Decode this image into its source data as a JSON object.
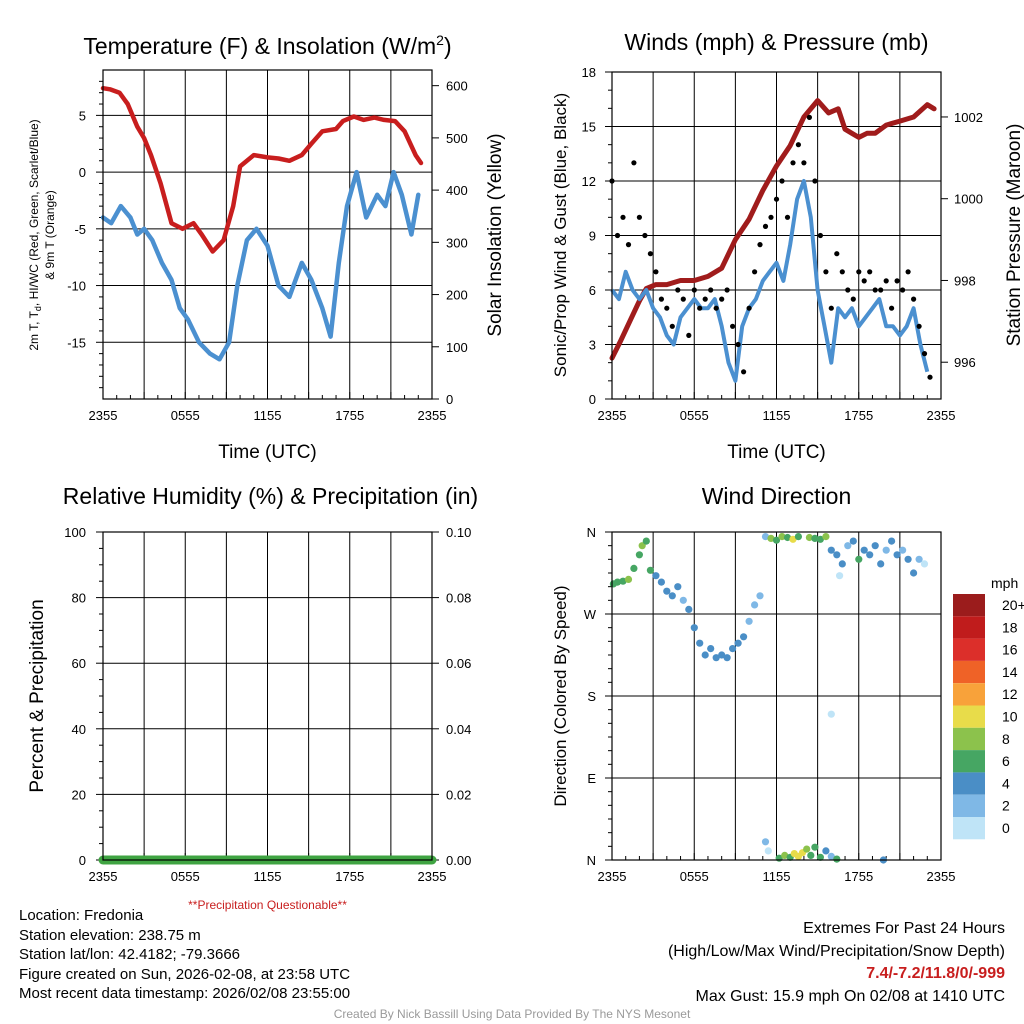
{
  "chart_data": [
    {
      "id": "temperature",
      "type": "line",
      "title": "Temperature (F) & Insolation (W/m",
      "title_superscript": "2",
      "title_suffix": ")",
      "xlabel": "Time (UTC)",
      "ylabel_left_lines": [
        "2m T, T",
        "d",
        ", HI/WC (Red, Green, Scarlet/Blue)",
        "& 9m T (Orange)"
      ],
      "ylabel_right": "Solar Insolation (Yellow)",
      "x_ticks": [
        "2355",
        "0555",
        "1155",
        "1755",
        "2355"
      ],
      "x_range_hours": [
        0,
        24
      ],
      "ylim": [
        -20,
        9
      ],
      "y_ticks": [
        5,
        0,
        -5,
        -10,
        -15
      ],
      "y2lim": [
        0,
        630
      ],
      "y2_ticks": [
        0,
        100,
        200,
        300,
        400,
        500,
        600
      ],
      "series": [
        {
          "name": "2m Temperature",
          "color": "#c81e1e",
          "x": [
            0,
            0.5,
            1.2,
            1.8,
            2.5,
            3,
            3.5,
            4.2,
            5,
            5.8,
            6.6,
            7.2,
            8,
            8.8,
            9.5,
            10,
            11,
            12,
            12.8,
            13.6,
            14.5,
            15.2,
            16,
            17,
            17.5,
            18.3,
            19,
            19.8,
            20.5,
            21.3,
            22,
            22.8,
            23.2
          ],
          "y": [
            7.4,
            7.3,
            7,
            6,
            4,
            3,
            1.5,
            -1,
            -4.5,
            -5,
            -4.5,
            -5.5,
            -7,
            -6,
            -3,
            0.5,
            1.5,
            1.3,
            1.2,
            1,
            1.5,
            2.5,
            3.6,
            3.8,
            4.5,
            4.9,
            4.6,
            4.8,
            4.6,
            4.5,
            3.6,
            1.5,
            0.8
          ]
        },
        {
          "name": "Wind Chill",
          "color": "#4b90d0",
          "x": [
            0,
            0.6,
            1.3,
            2,
            2.5,
            3,
            3.6,
            4.3,
            5,
            5.6,
            6.2,
            7,
            7.8,
            8.5,
            9.2,
            9.8,
            10.5,
            11.2,
            12,
            12.8,
            13.6,
            14.5,
            15.2,
            16,
            16.6,
            17.2,
            17.8,
            18.5,
            19.2,
            20,
            20.6,
            21.2,
            21.8,
            22.5,
            23
          ],
          "y": [
            -4,
            -4.5,
            -3,
            -4,
            -5.5,
            -5,
            -6,
            -8,
            -9.5,
            -12,
            -13,
            -15,
            -16,
            -16.5,
            -15,
            -10,
            -6,
            -5,
            -6.5,
            -10,
            -11,
            -8,
            -9.5,
            -12,
            -14.5,
            -8,
            -3,
            0,
            -4,
            -2,
            -3,
            0,
            -2,
            -5.5,
            -2
          ]
        }
      ]
    },
    {
      "id": "winds",
      "type": "scatter",
      "title": "Winds (mph) & Pressure (mb)",
      "xlabel": "Time (UTC)",
      "ylabel_left": "Sonic/Prop Wind & Gust (Blue, Black)",
      "ylabel_right": "Station Pressure (Maroon)",
      "x_ticks": [
        "2355",
        "0555",
        "1155",
        "1755",
        "2355"
      ],
      "x_range_hours": [
        0,
        24
      ],
      "ylim": [
        0,
        18
      ],
      "y_ticks": [
        0,
        3,
        6,
        9,
        12,
        15,
        18
      ],
      "y2lim": [
        995.1,
        1003.1
      ],
      "y2_ticks": [
        996,
        998,
        1000,
        1002
      ],
      "series": [
        {
          "name": "Station Pressure",
          "color": "#a01c1c",
          "x": [
            0,
            0.6,
            1.3,
            2,
            2.5,
            3.2,
            4,
            5,
            6,
            7,
            8,
            9,
            10,
            11,
            12,
            13,
            14,
            15,
            15.8,
            16.5,
            17,
            17.5,
            18,
            18.6,
            19.2,
            20,
            21,
            22,
            23,
            23.5
          ],
          "y": [
            996.1,
            996.5,
            997,
            997.5,
            997.8,
            997.9,
            997.9,
            998,
            998,
            998.1,
            998.3,
            999,
            999.5,
            1000.2,
            1000.8,
            1001.3,
            1002,
            1002.4,
            1002.1,
            1002.2,
            1001.7,
            1001.6,
            1001.5,
            1001.6,
            1001.6,
            1001.8,
            1001.9,
            1002,
            1002.3,
            1002.2
          ]
        },
        {
          "name": "Sonic Wind",
          "color": "#4b90d0",
          "x": [
            0,
            0.5,
            1,
            1.5,
            2,
            2.5,
            3,
            3.5,
            4,
            4.5,
            5,
            5.5,
            6,
            6.5,
            7,
            7.5,
            8,
            8.5,
            9,
            9.5,
            10,
            10.5,
            11,
            11.5,
            12,
            12.5,
            13,
            13.5,
            14,
            14.5,
            15,
            15.5,
            16,
            16.5,
            17,
            17.5,
            18,
            18.5,
            19,
            19.5,
            20,
            20.5,
            21,
            21.5,
            22,
            22.5,
            23
          ],
          "y": [
            6,
            5.5,
            7,
            6,
            5.5,
            6,
            5,
            4.5,
            3.5,
            3,
            4.5,
            5,
            5.5,
            5,
            5,
            5.5,
            4,
            2,
            1,
            4,
            5,
            5.5,
            6.5,
            7,
            7.5,
            6.5,
            8.5,
            11,
            12,
            10,
            6,
            4,
            2,
            5,
            4.5,
            5,
            4,
            4.5,
            5,
            5.5,
            4,
            4,
            3.5,
            4,
            5,
            3,
            1.5
          ]
        },
        {
          "name": "Gust",
          "color": "#000000",
          "x": [
            0,
            0.4,
            0.8,
            1.2,
            1.6,
            2,
            2.4,
            2.8,
            3.2,
            3.6,
            4,
            4.4,
            4.8,
            5.2,
            5.6,
            6,
            6.4,
            6.8,
            7.2,
            7.6,
            8,
            8.4,
            8.8,
            9.2,
            9.6,
            10,
            10.4,
            10.8,
            11.2,
            11.6,
            12,
            12.4,
            12.8,
            13.2,
            13.6,
            14,
            14.4,
            14.8,
            15.2,
            15.6,
            16,
            16.4,
            16.8,
            17.2,
            17.6,
            18,
            18.4,
            18.8,
            19.2,
            19.6,
            20,
            20.4,
            20.8,
            21.2,
            21.6,
            22,
            22.4,
            22.8,
            23.2
          ],
          "y": [
            12,
            9,
            10,
            8.5,
            13,
            10,
            9,
            8,
            7,
            5.5,
            5,
            4,
            6,
            5.5,
            3.5,
            6,
            5,
            5.5,
            6,
            5,
            5.5,
            6,
            4,
            3,
            1.5,
            5,
            7,
            8.5,
            9.5,
            10,
            11,
            12,
            10,
            13,
            14,
            13,
            15.5,
            12,
            9,
            7,
            5,
            8,
            7,
            6,
            5.5,
            7,
            6.5,
            7,
            6,
            6,
            6.5,
            5,
            6.5,
            6,
            7,
            5.5,
            4,
            2.5,
            1.2
          ]
        }
      ]
    },
    {
      "id": "humidity",
      "type": "line",
      "title": "Relative Humidity (%) & Precipitation (in)",
      "ylabel_left": "Percent & Precipitation",
      "note": "**Precipitation Questionable**",
      "x_ticks": [
        "2355",
        "0555",
        "1155",
        "1755",
        "2355"
      ],
      "x_range_hours": [
        0,
        24
      ],
      "ylim": [
        0,
        100
      ],
      "y_ticks": [
        0,
        20,
        40,
        60,
        80,
        100
      ],
      "y2lim": [
        0,
        0.1
      ],
      "y2_ticks": [
        "0.00",
        "0.02",
        "0.04",
        "0.06",
        "0.08",
        "0.10"
      ],
      "series": [
        {
          "name": "Precipitation",
          "color": "#3fa442",
          "x": [
            0,
            24
          ],
          "y": [
            0,
            0
          ]
        }
      ]
    },
    {
      "id": "wind-direction",
      "type": "scatter",
      "title": "Wind Direction",
      "ylabel_left": "Direction (Colored By Speed)",
      "x_ticks": [
        "2355",
        "0555",
        "1155",
        "1755",
        "2355"
      ],
      "x_range_hours": [
        0,
        24
      ],
      "ylim_degrees": [
        0,
        360
      ],
      "y_tick_labels": [
        "N",
        "E",
        "S",
        "W",
        "N"
      ],
      "colorbar_title": "mph",
      "colorbar_labels": [
        "20+",
        "18",
        "16",
        "14",
        "12",
        "10",
        "8",
        "6",
        "4",
        "2",
        "0"
      ],
      "colorbar_colors": [
        "#9b1c1c",
        "#c01c1c",
        "#dc2f2a",
        "#ef6227",
        "#f8a23a",
        "#e8dc4a",
        "#8cc24c",
        "#46a663",
        "#4a8ec6",
        "#7fb8e6",
        "#bfe4f7"
      ],
      "points": [
        {
          "x": 0.1,
          "d": 303,
          "c": "#46a663"
        },
        {
          "x": 0.4,
          "d": 305,
          "c": "#46a663"
        },
        {
          "x": 0.8,
          "d": 306,
          "c": "#46a663"
        },
        {
          "x": 1.2,
          "d": 308,
          "c": "#8cc24c"
        },
        {
          "x": 1.6,
          "d": 320,
          "c": "#46a663"
        },
        {
          "x": 2,
          "d": 335,
          "c": "#46a663"
        },
        {
          "x": 2.2,
          "d": 345,
          "c": "#8cc24c"
        },
        {
          "x": 2.5,
          "d": 350,
          "c": "#46a663"
        },
        {
          "x": 2.8,
          "d": 318,
          "c": "#46a663"
        },
        {
          "x": 3.2,
          "d": 312,
          "c": "#4a8ec6"
        },
        {
          "x": 3.6,
          "d": 305,
          "c": "#4a8ec6"
        },
        {
          "x": 4,
          "d": 295,
          "c": "#4a8ec6"
        },
        {
          "x": 4.4,
          "d": 290,
          "c": "#4a8ec6"
        },
        {
          "x": 4.8,
          "d": 300,
          "c": "#4a8ec6"
        },
        {
          "x": 5.2,
          "d": 285,
          "c": "#7fb8e6"
        },
        {
          "x": 5.6,
          "d": 275,
          "c": "#4a8ec6"
        },
        {
          "x": 6,
          "d": 255,
          "c": "#4a8ec6"
        },
        {
          "x": 6.4,
          "d": 238,
          "c": "#4a8ec6"
        },
        {
          "x": 6.8,
          "d": 225,
          "c": "#4a8ec6"
        },
        {
          "x": 7.2,
          "d": 232,
          "c": "#4a8ec6"
        },
        {
          "x": 7.6,
          "d": 222,
          "c": "#4a8ec6"
        },
        {
          "x": 8,
          "d": 225,
          "c": "#4a8ec6"
        },
        {
          "x": 8.4,
          "d": 222,
          "c": "#4a8ec6"
        },
        {
          "x": 8.8,
          "d": 232,
          "c": "#4a8ec6"
        },
        {
          "x": 9.2,
          "d": 238,
          "c": "#4a8ec6"
        },
        {
          "x": 9.6,
          "d": 245,
          "c": "#4a8ec6"
        },
        {
          "x": 10,
          "d": 262,
          "c": "#7fb8e6"
        },
        {
          "x": 10.4,
          "d": 280,
          "c": "#7fb8e6"
        },
        {
          "x": 10.8,
          "d": 290,
          "c": "#7fb8e6"
        },
        {
          "x": 11.2,
          "d": 355,
          "c": "#7fb8e6"
        },
        {
          "x": 11.6,
          "d": 353,
          "c": "#8cc24c"
        },
        {
          "x": 12,
          "d": 351,
          "c": "#46a663"
        },
        {
          "x": 12.4,
          "d": 355,
          "c": "#8cc24c"
        },
        {
          "x": 12.8,
          "d": 354,
          "c": "#46a663"
        },
        {
          "x": 13.2,
          "d": 352,
          "c": "#e8dc4a"
        },
        {
          "x": 13.6,
          "d": 355,
          "c": "#46a663"
        },
        {
          "x": 14.4,
          "d": 354,
          "c": "#8cc24c"
        },
        {
          "x": 14.8,
          "d": 353,
          "c": "#46a663"
        },
        {
          "x": 15.2,
          "d": 352,
          "c": "#46a663"
        },
        {
          "x": 15.6,
          "d": 355,
          "c": "#8cc24c"
        },
        {
          "x": 16,
          "d": 340,
          "c": "#4a8ec6"
        },
        {
          "x": 16.4,
          "d": 335,
          "c": "#4a8ec6"
        },
        {
          "x": 16.8,
          "d": 325,
          "c": "#4a8ec6"
        },
        {
          "x": 17.2,
          "d": 345,
          "c": "#7fb8e6"
        },
        {
          "x": 17.6,
          "d": 350,
          "c": "#4a8ec6"
        },
        {
          "x": 18,
          "d": 330,
          "c": "#46a663"
        },
        {
          "x": 18.4,
          "d": 340,
          "c": "#4a8ec6"
        },
        {
          "x": 18.8,
          "d": 335,
          "c": "#4a8ec6"
        },
        {
          "x": 19.2,
          "d": 345,
          "c": "#4a8ec6"
        },
        {
          "x": 19.6,
          "d": 325,
          "c": "#4a8ec6"
        },
        {
          "x": 20,
          "d": 340,
          "c": "#7fb8e6"
        },
        {
          "x": 20.4,
          "d": 350,
          "c": "#4a8ec6"
        },
        {
          "x": 20.8,
          "d": 335,
          "c": "#4a8ec6"
        },
        {
          "x": 21.2,
          "d": 340,
          "c": "#7fb8e6"
        },
        {
          "x": 21.6,
          "d": 330,
          "c": "#4a8ec6"
        },
        {
          "x": 22,
          "d": 315,
          "c": "#4a8ec6"
        },
        {
          "x": 22.4,
          "d": 330,
          "c": "#7fb8e6"
        },
        {
          "x": 22.8,
          "d": 325,
          "c": "#bfe4f7"
        },
        {
          "x": 16.6,
          "d": 312,
          "c": "#bfe4f7"
        },
        {
          "x": 16,
          "d": 160,
          "c": "#bfe4f7"
        },
        {
          "x": 11.2,
          "d": 20,
          "c": "#7fb8e6"
        },
        {
          "x": 11.4,
          "d": 10,
          "c": "#bfe4f7"
        },
        {
          "x": 12.2,
          "d": 2,
          "c": "#46a663"
        },
        {
          "x": 12.6,
          "d": 5,
          "c": "#8cc24c"
        },
        {
          "x": 13,
          "d": 3,
          "c": "#46a663"
        },
        {
          "x": 13.3,
          "d": 7,
          "c": "#e8dc4a"
        },
        {
          "x": 13.6,
          "d": 4,
          "c": "#e8dc4a"
        },
        {
          "x": 13.9,
          "d": 8,
          "c": "#e8dc4a"
        },
        {
          "x": 14.2,
          "d": 12,
          "c": "#8cc24c"
        },
        {
          "x": 14.5,
          "d": 5,
          "c": "#46a663"
        },
        {
          "x": 14.8,
          "d": 14,
          "c": "#46a663"
        },
        {
          "x": 15.2,
          "d": 3,
          "c": "#46a663"
        },
        {
          "x": 15.6,
          "d": 10,
          "c": "#4a8ec6"
        },
        {
          "x": 16,
          "d": 4,
          "c": "#7fb8e6"
        },
        {
          "x": 16.4,
          "d": 1,
          "c": "#46a663"
        },
        {
          "x": 19.8,
          "d": 0,
          "c": "#4a8ec6"
        }
      ]
    }
  ],
  "footer": {
    "location": "Location: Fredonia",
    "elevation": "Station elevation: 238.75 m",
    "latlon": "Station lat/lon: 42.4182; -79.3666",
    "created": "Figure created on Sun, 2026-02-08, at 23:58 UTC",
    "recent": "Most recent data timestamp: 2026/02/08 23:55:00",
    "extremes_title": "Extremes For Past 24 Hours",
    "extremes_legend": "(High/Low/Max Wind/Precipitation/Snow Depth)",
    "extremes_values": "7.4/-7.2/11.8/0/-999",
    "max_gust": "Max Gust: 15.9 mph On 02/08 at 1410 UTC",
    "credit": "Created By Nick Bassill Using Data Provided By The NYS Mesonet"
  }
}
